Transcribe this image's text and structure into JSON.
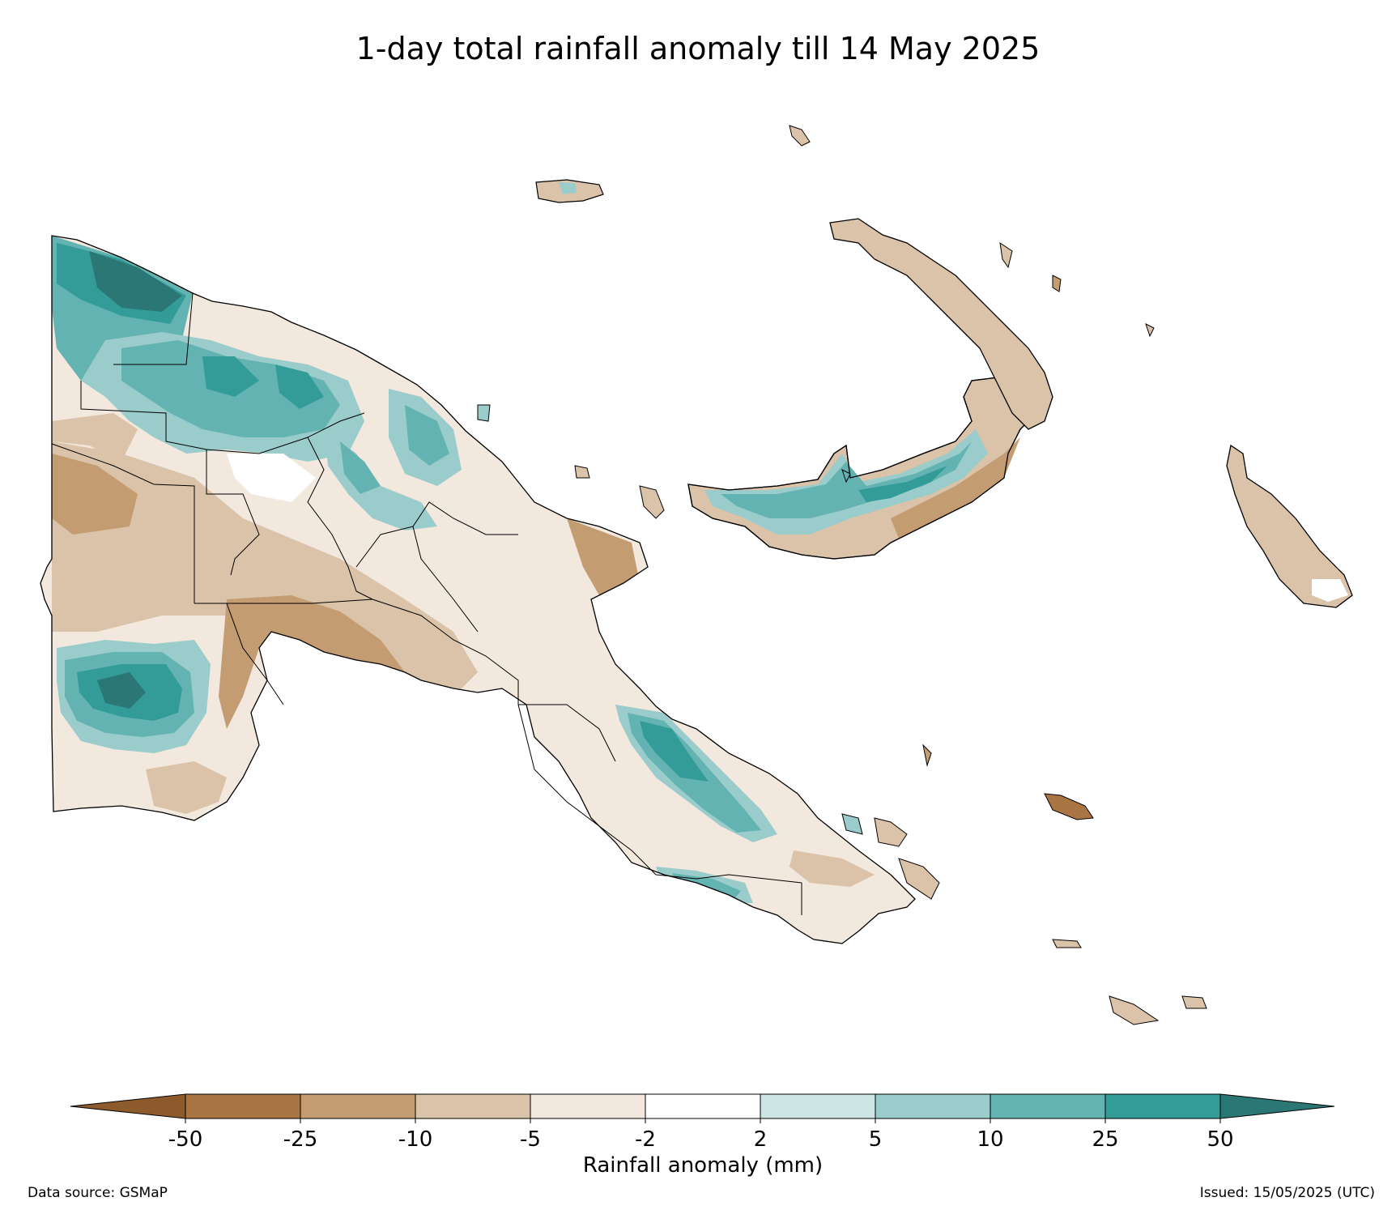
{
  "title": "1-day total rainfall anomaly till 14 May 2025",
  "colorbar": {
    "label": "Rainfall anomaly (mm)",
    "ticks": [
      "-50",
      "-25",
      "-10",
      "-5",
      "-2",
      "2",
      "5",
      "10",
      "25",
      "50"
    ],
    "colors": {
      "below_-50": "#8c5a2b",
      "-50_to_-25": "#a97543",
      "-25_to_-10": "#c49c72",
      "-10_to_-5": "#dac3a8",
      "-5_to_-2": "#f2e8de",
      "-2_to_2": "#ffffff",
      "2_to_5": "#cce6e5",
      "5_to_10": "#99cccb",
      "10_to_25": "#62b3b1",
      "25_to_50": "#339c99",
      "above_50": "#2a7775"
    }
  },
  "footer": {
    "data_source": "Data source: GSMaP",
    "issued": "Issued: 15/05/2025 (UTC)"
  }
}
